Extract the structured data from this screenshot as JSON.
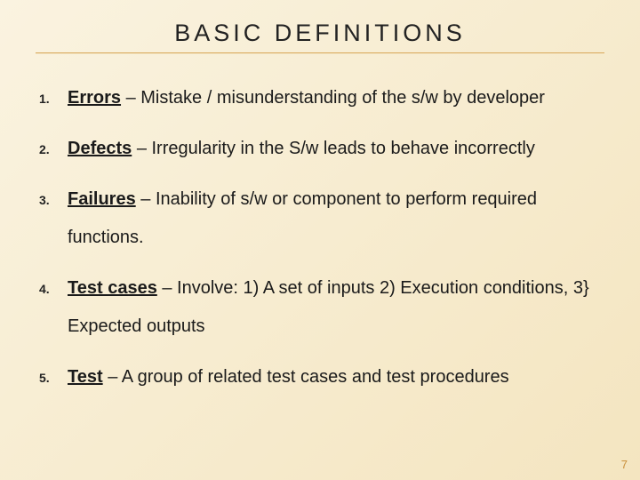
{
  "background_gradient": [
    "#faf3e0",
    "#f7ecd0",
    "#f4e5c0"
  ],
  "rule_color": "#d9a85a",
  "title": {
    "text": "BASIC  DEFINITIONS",
    "fontsize": 27,
    "letter_spacing": 4,
    "color": "#222222"
  },
  "items": [
    {
      "num": "1.",
      "term": "Errors",
      "rest": " – Mistake / misunderstanding of the s/w by developer"
    },
    {
      "num": "2.",
      "term": "Defects",
      "rest": " – Irregularity in the S/w leads to behave incorrectly"
    },
    {
      "num": "3.",
      "term": "Failures",
      "rest": " – Inability of s/w or component to perform required functions."
    },
    {
      "num": "4.",
      "term": "Test cases",
      "rest": " – Involve: 1) A set of inputs   2) Execution conditions, 3} Expected outputs"
    },
    {
      "num": "5.",
      "term": "Test",
      "rest": " – A group of related test cases and test procedures"
    }
  ],
  "body_style": {
    "fontsize": 20,
    "line_height": 2.15,
    "color": "#1a1a1a",
    "num_fontsize": 14,
    "num_color": "#222222"
  },
  "page_number": {
    "value": "7",
    "color": "#c98f3a",
    "fontsize": 13
  }
}
